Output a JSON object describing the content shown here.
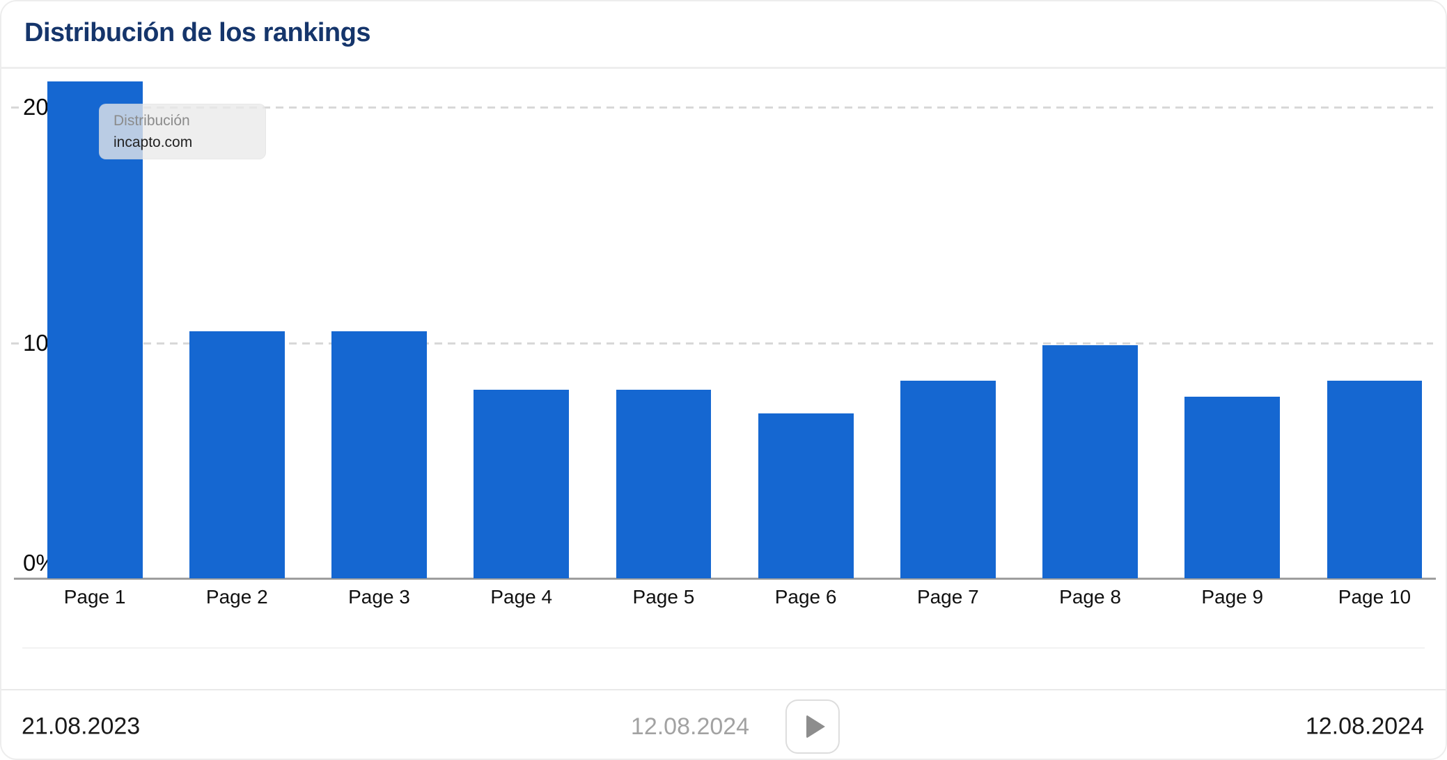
{
  "card": {
    "title": "Distribución de los rankings"
  },
  "chart_data": {
    "type": "bar",
    "title": "Distribución de los rankings",
    "categories": [
      "Page 1",
      "Page 2",
      "Page 3",
      "Page 4",
      "Page 5",
      "Page 6",
      "Page 7",
      "Page 8",
      "Page 9",
      "Page 10"
    ],
    "values": [
      21.1,
      10.5,
      10.5,
      8.0,
      8.0,
      7.0,
      8.4,
      9.9,
      7.7,
      8.4
    ],
    "value_unit": "%",
    "xlabel": "",
    "ylabel": "",
    "ylim": [
      0,
      21.6
    ],
    "y_ticks": [
      {
        "value": 20,
        "label": "20%"
      },
      {
        "value": 10,
        "label": "10%"
      },
      {
        "value": 0,
        "label": "0%"
      }
    ],
    "grid": "horizontal-dashed",
    "legend_position": "none",
    "bar_color": "#1567d1"
  },
  "tooltip": {
    "label": "Distribución",
    "domain": "incapto.com"
  },
  "footer": {
    "start_date": "21.08.2023",
    "current_date": "12.08.2024",
    "end_date": "12.08.2024",
    "play_icon": "play"
  },
  "colors": {
    "bar": "#1567d1",
    "title": "#15356b",
    "gridline": "#d8d8d8",
    "axis": "#9e9e9e",
    "date_text": "#191919",
    "date_muted": "#a2a2a2",
    "tooltip_label": "#8b8b8b",
    "tooltip_domain": "#222222"
  }
}
